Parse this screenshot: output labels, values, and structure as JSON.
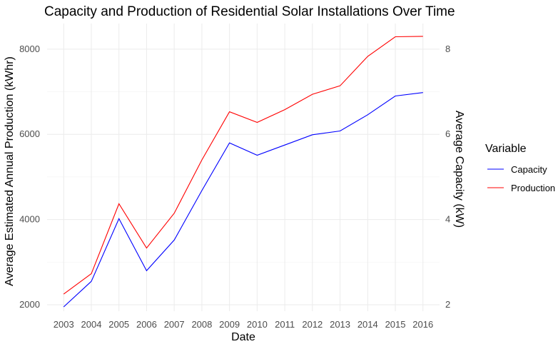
{
  "chart_data": {
    "type": "line",
    "title": "Capacity and Production of Residential Solar Installations Over Time",
    "xlabel": "Date",
    "ylabel": "Average Estimated Annual Production (kWhr)",
    "ylabel_right": "Average Capacity (kW)",
    "categories": [
      "2003",
      "2004",
      "2005",
      "2006",
      "2007",
      "2008",
      "2009",
      "2010",
      "2011",
      "2012",
      "2013",
      "2014",
      "2015",
      "2016"
    ],
    "y_ticks": [
      "2000",
      "4000",
      "6000",
      "8000"
    ],
    "y_right_ticks": [
      "2",
      "4",
      "6",
      "8"
    ],
    "ylim": [
      1850,
      8600
    ],
    "ylim_right": [
      1.85,
      8.6
    ],
    "grid": true,
    "legend": {
      "title": "Variable",
      "position": "right"
    },
    "series": [
      {
        "name": "Capacity",
        "color": "#0000ff",
        "axis": "right",
        "values": [
          1.95,
          2.55,
          4.02,
          2.8,
          3.52,
          4.68,
          5.8,
          5.51,
          5.75,
          5.99,
          6.08,
          6.46,
          6.9,
          6.98
        ]
      },
      {
        "name": "Production",
        "color": "#ff0000",
        "axis": "left",
        "values": [
          2250,
          2730,
          4370,
          3330,
          4150,
          5400,
          6530,
          6280,
          6580,
          6940,
          7140,
          7830,
          8290,
          8300
        ]
      }
    ]
  }
}
